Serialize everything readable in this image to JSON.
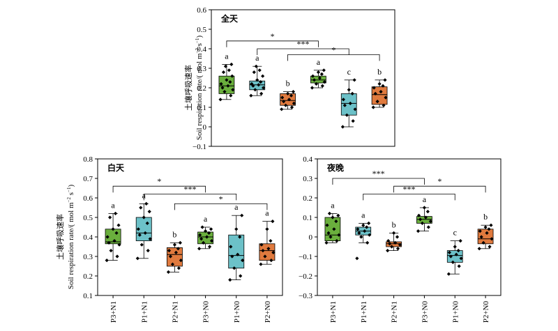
{
  "ylabel_cn": "土壤呼吸速率",
  "ylabel_en": "Soil respiration rate/( mol m",
  "ylabel_sup1": "−2",
  "ylabel_s": " s",
  "ylabel_sup2": "−1",
  "ylabel_close": ")",
  "colors": {
    "P3": "#6aaf3d",
    "P1": "#6cc1c8",
    "P2": "#e07a3e"
  },
  "chart_data": [
    {
      "type": "box",
      "title": "全天",
      "categories": [
        "P3+N1",
        "P1+N1",
        "P2+N1",
        "P3+N0",
        "P1+N0",
        "P2+N0"
      ],
      "ylim": [
        -0.1,
        0.6
      ],
      "yticks": [
        "−0.1",
        "0",
        "0.1",
        "0.2",
        "0.3",
        "0.4",
        "0.5",
        "0.6"
      ],
      "boxes": [
        {
          "min": 0.14,
          "q1": 0.17,
          "median": 0.21,
          "q3": 0.26,
          "max": 0.32,
          "letter": "a",
          "points": [
            0.14,
            0.16,
            0.18,
            0.19,
            0.2,
            0.21,
            0.22,
            0.23,
            0.24,
            0.26,
            0.28,
            0.29,
            0.31,
            0.32
          ]
        },
        {
          "min": 0.16,
          "q1": 0.19,
          "median": 0.215,
          "q3": 0.235,
          "max": 0.31,
          "letter": "a",
          "points": [
            0.16,
            0.17,
            0.19,
            0.2,
            0.21,
            0.215,
            0.22,
            0.23,
            0.24,
            0.26,
            0.28,
            0.29,
            0.31
          ]
        },
        {
          "min": 0.09,
          "q1": 0.11,
          "median": 0.135,
          "q3": 0.17,
          "max": 0.18,
          "letter": "b",
          "points": [
            0.09,
            0.1,
            0.11,
            0.12,
            0.13,
            0.14,
            0.15,
            0.16,
            0.17,
            0.18
          ]
        },
        {
          "min": 0.2,
          "q1": 0.225,
          "median": 0.24,
          "q3": 0.26,
          "max": 0.29,
          "letter": "a",
          "points": [
            0.2,
            0.21,
            0.22,
            0.23,
            0.24,
            0.25,
            0.26,
            0.27,
            0.28,
            0.29
          ]
        },
        {
          "min": 0.0,
          "q1": 0.06,
          "median": 0.12,
          "q3": 0.17,
          "max": 0.24,
          "letter": "c",
          "points": [
            0.0,
            0.03,
            0.06,
            0.09,
            0.11,
            0.12,
            0.14,
            0.17,
            0.19,
            0.24
          ]
        },
        {
          "min": 0.1,
          "q1": 0.115,
          "median": 0.165,
          "q3": 0.205,
          "max": 0.24,
          "letter": "b",
          "points": [
            0.1,
            0.11,
            0.13,
            0.15,
            0.17,
            0.18,
            0.2,
            0.21,
            0.22,
            0.24
          ]
        }
      ],
      "brackets": [
        {
          "from": 0,
          "to": 3,
          "y": 0.44,
          "label": "*"
        },
        {
          "from": 1,
          "to": 4,
          "y": 0.4,
          "label": "***"
        },
        {
          "from": 2,
          "to": 5,
          "y": 0.37,
          "label": "*"
        }
      ]
    },
    {
      "type": "box",
      "title": "白天",
      "categories": [
        "P3+N1",
        "P1+N1",
        "P2+N1",
        "P3+N0",
        "P1+N0",
        "P2+N0"
      ],
      "ylim": [
        0.1,
        0.8
      ],
      "yticks": [
        "0.1",
        "0.2",
        "0.3",
        "0.4",
        "0.5",
        "0.6",
        "0.7",
        "0.8"
      ],
      "boxes": [
        {
          "min": 0.28,
          "q1": 0.365,
          "median": 0.375,
          "q3": 0.44,
          "max": 0.52,
          "letter": "a",
          "points": [
            0.28,
            0.3,
            0.33,
            0.36,
            0.37,
            0.38,
            0.4,
            0.42,
            0.44,
            0.46,
            0.5,
            0.52
          ]
        },
        {
          "min": 0.29,
          "q1": 0.38,
          "median": 0.42,
          "q3": 0.5,
          "max": 0.57,
          "letter": "a",
          "points": [
            0.29,
            0.33,
            0.36,
            0.39,
            0.41,
            0.42,
            0.44,
            0.47,
            0.5,
            0.53,
            0.55,
            0.57
          ]
        },
        {
          "min": 0.22,
          "q1": 0.25,
          "median": 0.31,
          "q3": 0.345,
          "max": 0.37,
          "letter": "b",
          "points": [
            0.22,
            0.24,
            0.26,
            0.28,
            0.3,
            0.32,
            0.33,
            0.34,
            0.36,
            0.37
          ]
        },
        {
          "min": 0.34,
          "q1": 0.365,
          "median": 0.4,
          "q3": 0.425,
          "max": 0.45,
          "letter": "a",
          "points": [
            0.34,
            0.35,
            0.37,
            0.38,
            0.39,
            0.4,
            0.41,
            0.42,
            0.43,
            0.44,
            0.45
          ]
        },
        {
          "min": 0.18,
          "q1": 0.24,
          "median": 0.305,
          "q3": 0.41,
          "max": 0.51,
          "letter": "a",
          "points": [
            0.18,
            0.2,
            0.24,
            0.28,
            0.3,
            0.31,
            0.35,
            0.4,
            0.44,
            0.51
          ]
        },
        {
          "min": 0.26,
          "q1": 0.28,
          "median": 0.33,
          "q3": 0.365,
          "max": 0.48,
          "letter": "a",
          "points": [
            0.26,
            0.28,
            0.3,
            0.32,
            0.33,
            0.34,
            0.36,
            0.38,
            0.44,
            0.48
          ]
        }
      ],
      "brackets": [
        {
          "from": 0,
          "to": 3,
          "y": 0.66,
          "label": "*"
        },
        {
          "from": 1,
          "to": 4,
          "y": 0.62,
          "label": "***"
        },
        {
          "from": 2,
          "to": 5,
          "y": 0.57,
          "label": "*"
        }
      ]
    },
    {
      "type": "box",
      "title": "夜晚",
      "categories": [
        "P3+N1",
        "P1+N1",
        "P2+N1",
        "P3+N0",
        "P1+N0",
        "P2+N0"
      ],
      "ylim": [
        -0.3,
        0.4
      ],
      "yticks": [
        "−0.3",
        "−0.2",
        "−0.1",
        "0",
        "0.1",
        "0.2",
        "0.3",
        "0.4"
      ],
      "boxes": [
        {
          "min": -0.03,
          "q1": -0.02,
          "median": 0.01,
          "q3": 0.1,
          "max": 0.12,
          "letter": "a",
          "points": [
            -0.03,
            -0.02,
            0.0,
            0.01,
            0.02,
            0.04,
            0.06,
            0.08,
            0.1,
            0.11,
            0.12
          ]
        },
        {
          "min": -0.03,
          "q1": 0.01,
          "median": 0.03,
          "q3": 0.05,
          "max": 0.07,
          "letter": "a",
          "points": [
            -0.11,
            -0.03,
            0.0,
            0.01,
            0.02,
            0.03,
            0.04,
            0.05,
            0.06,
            0.07
          ]
        },
        {
          "min": -0.07,
          "q1": -0.05,
          "median": -0.035,
          "q3": -0.025,
          "max": 0.02,
          "letter": "b",
          "points": [
            -0.07,
            -0.06,
            -0.05,
            -0.04,
            -0.035,
            -0.03,
            -0.02,
            0.0,
            0.02
          ]
        },
        {
          "min": 0.03,
          "q1": 0.07,
          "median": 0.09,
          "q3": 0.105,
          "max": 0.15,
          "letter": "a",
          "points": [
            0.03,
            0.05,
            0.07,
            0.08,
            0.09,
            0.1,
            0.11,
            0.13,
            0.15
          ]
        },
        {
          "min": -0.19,
          "q1": -0.13,
          "median": -0.095,
          "q3": -0.07,
          "max": -0.02,
          "letter": "c",
          "points": [
            -0.19,
            -0.15,
            -0.13,
            -0.11,
            -0.1,
            -0.09,
            -0.08,
            -0.07,
            -0.05,
            -0.02
          ]
        },
        {
          "min": -0.06,
          "q1": -0.035,
          "median": -0.01,
          "q3": 0.04,
          "max": 0.06,
          "letter": "b",
          "points": [
            -0.06,
            -0.05,
            -0.03,
            -0.01,
            0.0,
            0.02,
            0.03,
            0.04,
            0.05,
            0.06
          ]
        }
      ],
      "brackets": [
        {
          "from": 0,
          "to": 3,
          "y": 0.3,
          "label": "***"
        },
        {
          "from": 2,
          "to": 5,
          "y": 0.26,
          "label": "*"
        },
        {
          "from": 1,
          "to": 4,
          "y": 0.22,
          "label": "***"
        }
      ]
    }
  ]
}
